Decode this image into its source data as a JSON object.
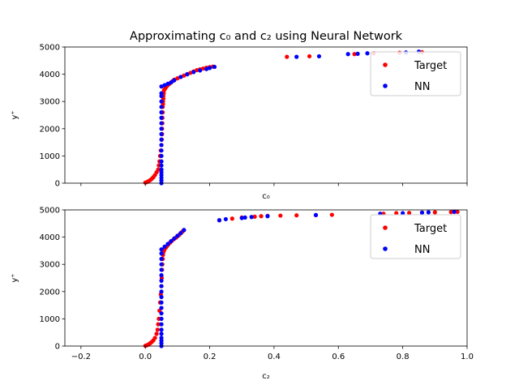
{
  "chart_data": {
    "type": "scatter",
    "title": "Approximating c₀ and c₂ using Neural Network",
    "shared_x_ticks": [
      "−0.2",
      "0.0",
      "0.2",
      "0.4",
      "0.6",
      "0.8",
      "1.0"
    ],
    "xlim": [
      -0.25,
      1.0
    ],
    "ylim": [
      0,
      5000
    ],
    "y_ticks": [
      "0",
      "1000",
      "2000",
      "3000",
      "4000",
      "5000"
    ],
    "legend_placement": "top-right",
    "colors": {
      "Target": "#ff0000",
      "NN": "#0000ff"
    },
    "panels": [
      {
        "id": "c0",
        "xlabel": "c₀",
        "ylabel": "y⁺",
        "show_x_tick_labels": false,
        "series": [
          {
            "name": "Target",
            "x": [
              0.0,
              0.005,
              0.01,
              0.015,
              0.02,
              0.025,
              0.03,
              0.035,
              0.04,
              0.042,
              0.044,
              0.046,
              0.048,
              0.05,
              0.051,
              0.052,
              0.052,
              0.053,
              0.053,
              0.054,
              0.054,
              0.055,
              0.055,
              0.056,
              0.056,
              0.057,
              0.058,
              0.06,
              0.063,
              0.066,
              0.07,
              0.075,
              0.08,
              0.085,
              0.09,
              0.1,
              0.11,
              0.12,
              0.13,
              0.14,
              0.15,
              0.16,
              0.17,
              0.18,
              0.19,
              0.2,
              0.21,
              0.44,
              0.51,
              0.65,
              0.71,
              0.79,
              0.86
            ],
            "y": [
              20,
              40,
              70,
              110,
              160,
              220,
              300,
              400,
              500,
              650,
              800,
              1000,
              1200,
              1400,
              1600,
              1800,
              2000,
              2200,
              2400,
              2600,
              2800,
              2900,
              3000,
              3100,
              3200,
              3300,
              3400,
              3450,
              3500,
              3550,
              3600,
              3650,
              3700,
              3750,
              3800,
              3850,
              3900,
              3950,
              4000,
              4050,
              4100,
              4150,
              4180,
              4210,
              4240,
              4260,
              4280,
              4640,
              4660,
              4740,
              4770,
              4790,
              4810
            ]
          },
          {
            "name": "NN",
            "x": [
              0.05,
              0.05,
              0.05,
              0.05,
              0.05,
              0.05,
              0.05,
              0.05,
              0.05,
              0.05,
              0.05,
              0.05,
              0.05,
              0.05,
              0.05,
              0.05,
              0.05,
              0.05,
              0.05,
              0.05,
              0.05,
              0.05,
              0.06,
              0.07,
              0.08,
              0.09,
              0.11,
              0.13,
              0.15,
              0.17,
              0.19,
              0.2,
              0.215,
              0.47,
              0.54,
              0.63,
              0.66,
              0.69,
              0.81,
              0.85
            ],
            "y": [
              0,
              100,
              200,
              300,
              400,
              500,
              650,
              800,
              1000,
              1200,
              1400,
              1600,
              1800,
              2000,
              2200,
              2400,
              2600,
              2800,
              3000,
              3200,
              3300,
              3550,
              3600,
              3650,
              3700,
              3780,
              3900,
              4000,
              4080,
              4140,
              4190,
              4230,
              4270,
              4640,
              4660,
              4740,
              4750,
              4770,
              4800,
              4830
            ]
          }
        ]
      },
      {
        "id": "c2",
        "xlabel": "c₂",
        "ylabel": "y⁺",
        "show_x_tick_labels": true,
        "series": [
          {
            "name": "Target",
            "x": [
              0.0,
              0.005,
              0.01,
              0.015,
              0.02,
              0.025,
              0.03,
              0.035,
              0.038,
              0.04,
              0.042,
              0.044,
              0.046,
              0.048,
              0.05,
              0.051,
              0.052,
              0.053,
              0.054,
              0.055,
              0.056,
              0.058,
              0.06,
              0.064,
              0.068,
              0.072,
              0.077,
              0.082,
              0.088,
              0.095,
              0.1,
              0.105,
              0.11,
              0.115,
              0.12,
              0.23,
              0.27,
              0.3,
              0.34,
              0.36,
              0.38,
              0.42,
              0.47,
              0.53,
              0.58,
              0.74,
              0.78,
              0.82,
              0.86,
              0.9,
              0.95,
              0.97
            ],
            "y": [
              10,
              30,
              60,
              100,
              150,
              210,
              300,
              450,
              600,
              800,
              1000,
              1300,
              1600,
              1900,
              2200,
              2500,
              2800,
              3000,
              3200,
              3350,
              3450,
              3500,
              3560,
              3620,
              3680,
              3740,
              3800,
              3860,
              3920,
              3980,
              4030,
              4080,
              4140,
              4200,
              4260,
              4620,
              4680,
              4720,
              4750,
              4770,
              4780,
              4790,
              4800,
              4810,
              4820,
              4860,
              4880,
              4890,
              4900,
              4910,
              4920,
              4930
            ]
          },
          {
            "name": "NN",
            "x": [
              0.05,
              0.05,
              0.05,
              0.05,
              0.05,
              0.05,
              0.05,
              0.05,
              0.05,
              0.05,
              0.05,
              0.05,
              0.05,
              0.05,
              0.05,
              0.05,
              0.05,
              0.05,
              0.05,
              0.05,
              0.05,
              0.06,
              0.07,
              0.08,
              0.09,
              0.1,
              0.11,
              0.12,
              0.23,
              0.25,
              0.3,
              0.31,
              0.33,
              0.38,
              0.53,
              0.73,
              0.8,
              0.86,
              0.88,
              0.96
            ],
            "y": [
              0,
              100,
              200,
              300,
              450,
              600,
              800,
              1000,
              1200,
              1400,
              1600,
              1800,
              2000,
              2200,
              2400,
              2600,
              2800,
              3000,
              3200,
              3400,
              3550,
              3650,
              3750,
              3850,
              3950,
              4050,
              4150,
              4260,
              4620,
              4660,
              4700,
              4720,
              4740,
              4770,
              4810,
              4860,
              4880,
              4900,
              4910,
              4930
            ]
          }
        ]
      }
    ]
  }
}
